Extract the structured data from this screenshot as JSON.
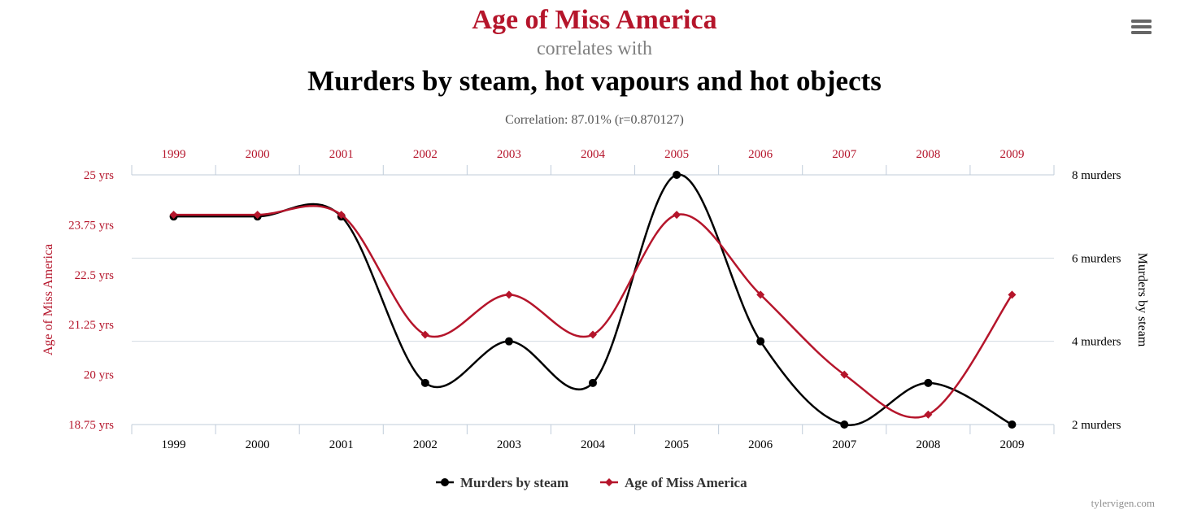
{
  "header": {
    "title": "Age of Miss America",
    "subtitle": "correlates with",
    "title2": "Murders by steam, hot vapours and hot objects",
    "correlation": "Correlation: 87.01% (r=0.870127)"
  },
  "menu": {
    "icon": "hamburger-menu-icon"
  },
  "credit": "tylervigen.com",
  "colors": {
    "red": "#b5152b",
    "black": "#000000",
    "grid": "#d3dbe3"
  },
  "chart_data": {
    "type": "line",
    "x": [
      "1999",
      "2000",
      "2001",
      "2002",
      "2003",
      "2004",
      "2005",
      "2006",
      "2007",
      "2008",
      "2009"
    ],
    "series": [
      {
        "name": "Murders by steam",
        "axis": "right",
        "color": "#000000",
        "marker": "circle",
        "values": [
          7,
          7,
          7,
          3,
          4,
          3,
          8,
          4,
          2,
          3,
          2
        ]
      },
      {
        "name": "Age of Miss America",
        "axis": "left",
        "color": "#b5152b",
        "marker": "diamond",
        "values": [
          24,
          24,
          24,
          21,
          22,
          21,
          24,
          22,
          20,
          19,
          22
        ]
      }
    ],
    "left_axis": {
      "label": "Age of Miss America",
      "ylim": [
        18.75,
        25
      ],
      "ticks": [
        18.75,
        20,
        21.25,
        22.5,
        23.75,
        25
      ],
      "tick_labels": [
        "18.75 yrs",
        "20 yrs",
        "21.25 yrs",
        "22.5 yrs",
        "23.75 yrs",
        "25 yrs"
      ]
    },
    "right_axis": {
      "label": "Murders by steam",
      "ylim": [
        2,
        8
      ],
      "ticks": [
        2,
        4,
        6,
        8
      ],
      "tick_labels": [
        "2 murders",
        "4 murders",
        "6 murders",
        "8 murders"
      ]
    },
    "grid": true,
    "legend": "bottom-center"
  }
}
